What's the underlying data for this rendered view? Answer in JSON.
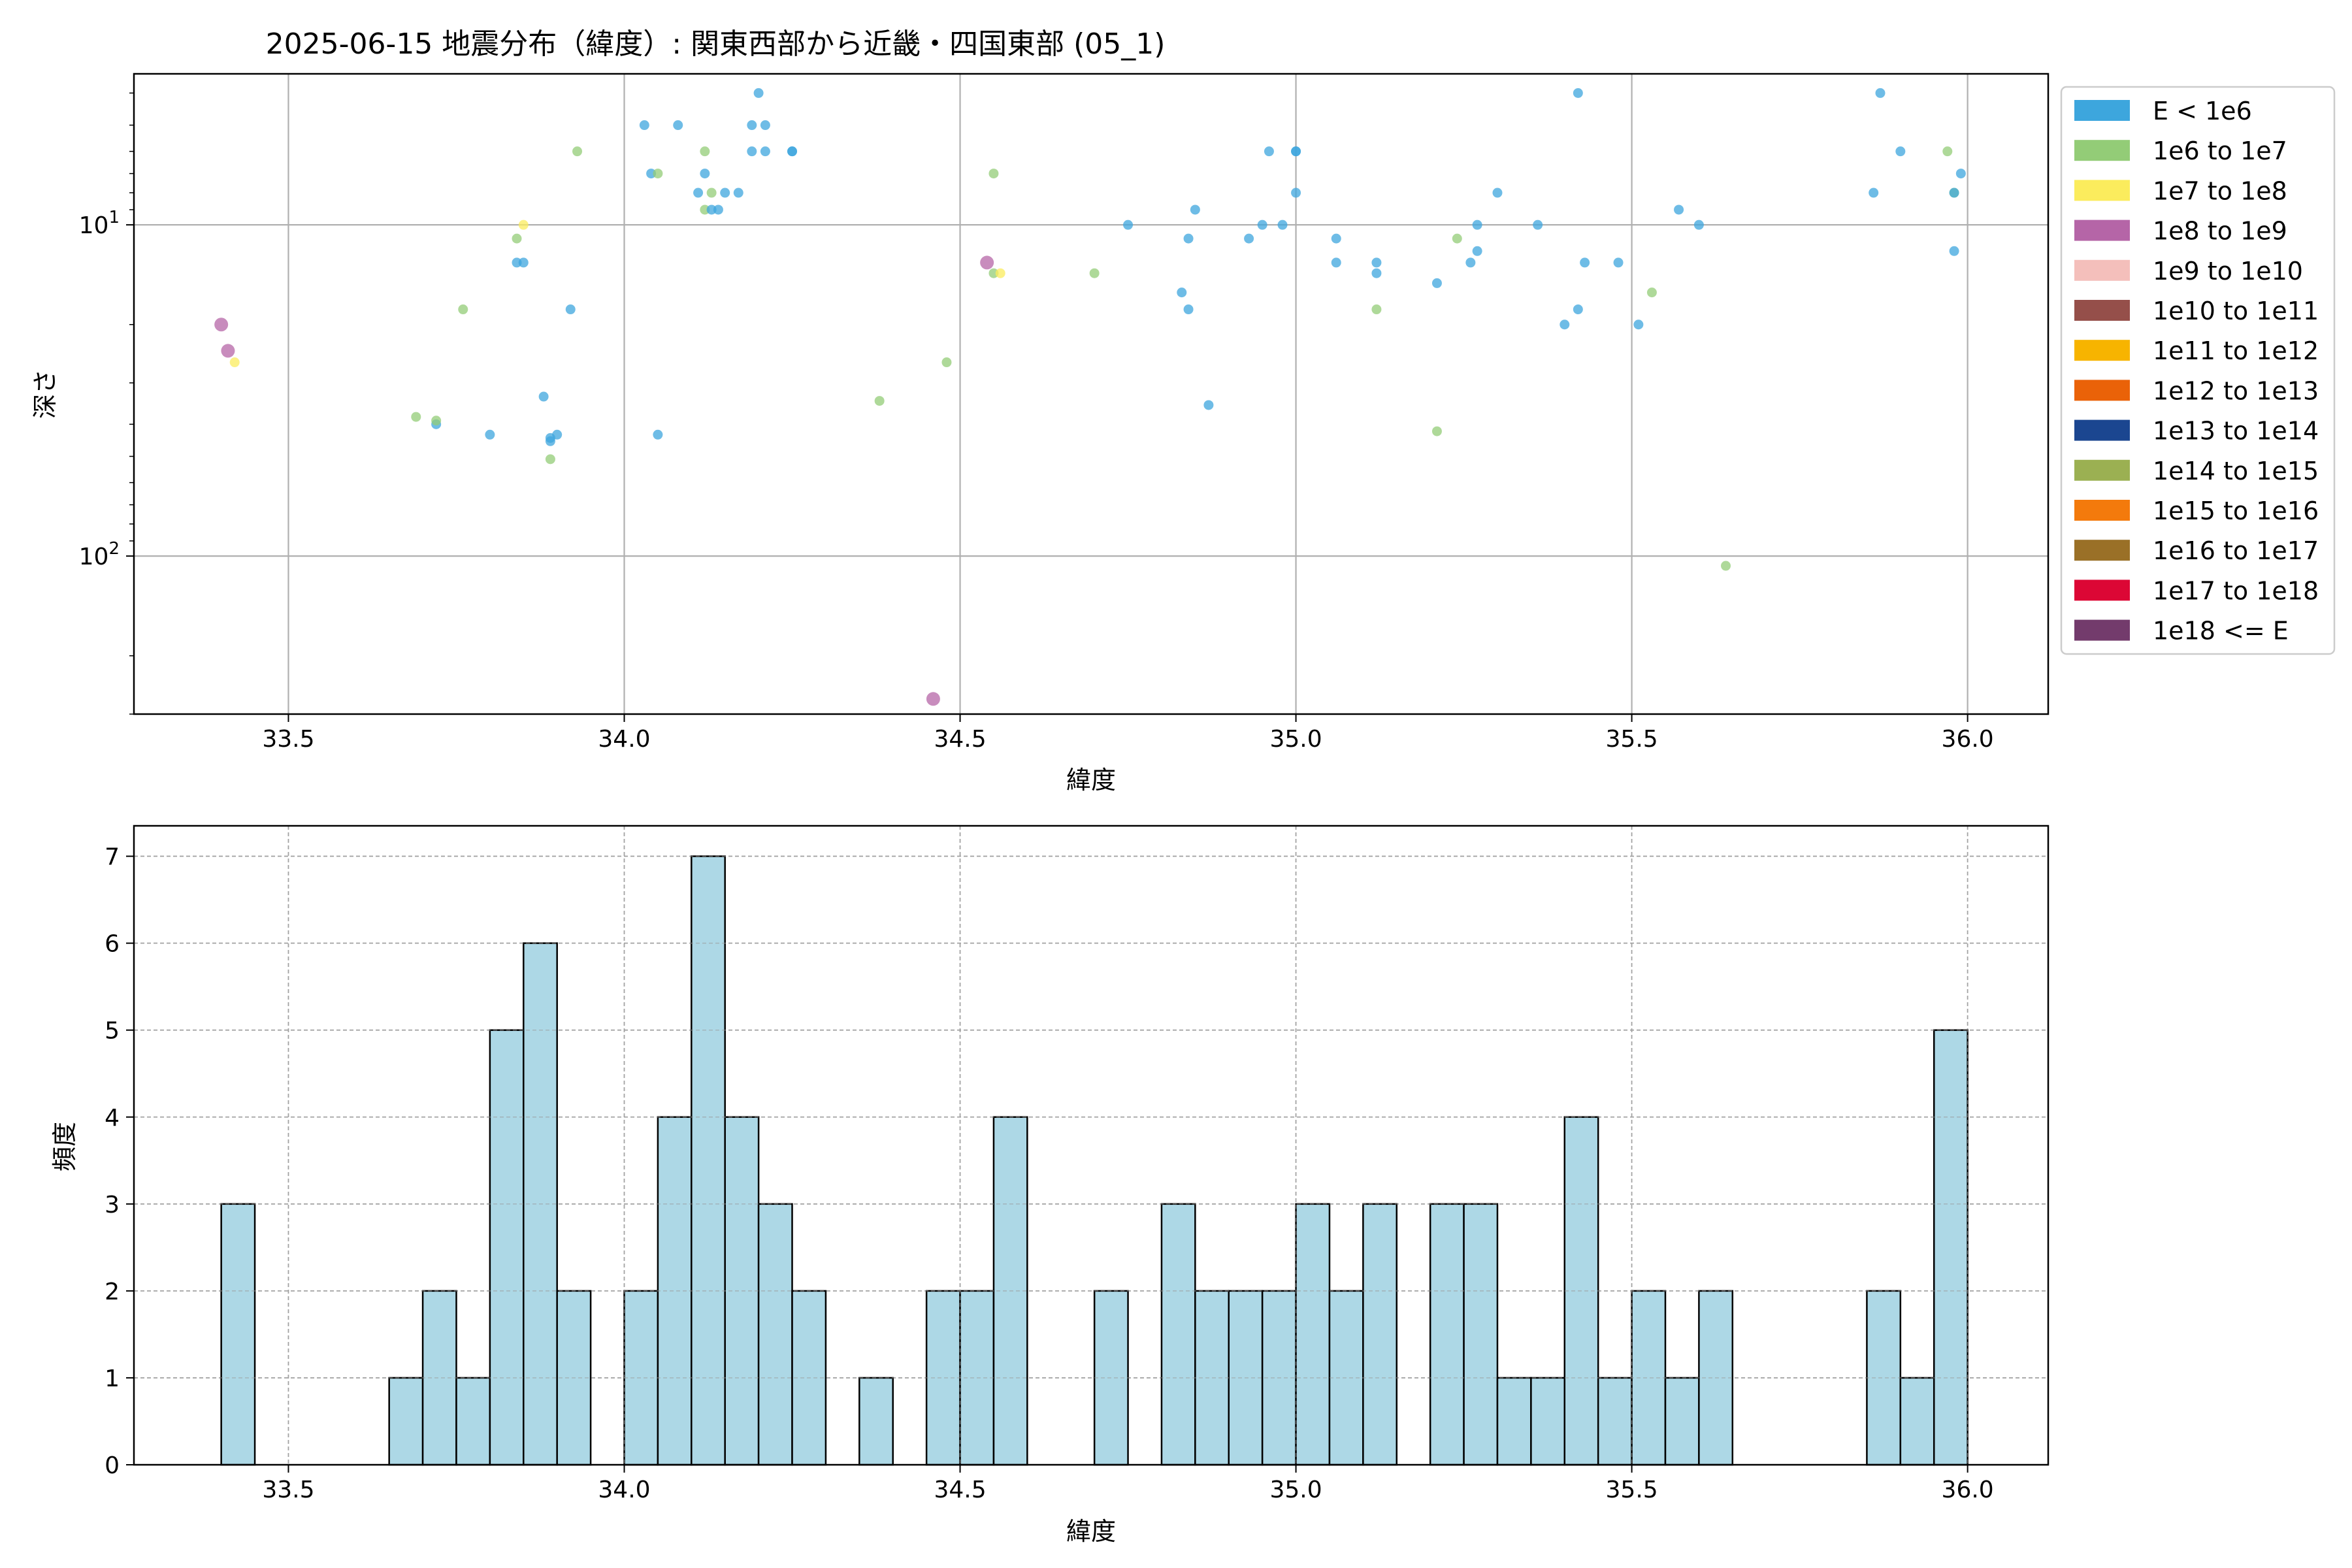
{
  "chart_data": [
    {
      "type": "scatter",
      "title": "2025-06-15 地震分布（緯度）: 関東西部から近畿・四国東部 (05_1)",
      "xlabel": "緯度",
      "ylabel": "深さ",
      "xlim": [
        33.27,
        36.12
      ],
      "ylim": [
        300,
        3.5
      ],
      "yscale": "log",
      "y_inverted": true,
      "grid": true,
      "legend_position": "outside-right",
      "x_ticks": [
        "33.5",
        "34.0",
        "34.5",
        "35.0",
        "35.5",
        "36.0"
      ],
      "y_tick_labels": [
        {
          "value": 10,
          "base": "10",
          "exp": "1"
        },
        {
          "value": 100,
          "base": "10",
          "exp": "2"
        }
      ],
      "legend": [
        {
          "label": "E < 1e6",
          "color": "#3da6dd"
        },
        {
          "label": "1e6 to 1e7",
          "color": "#93cc77"
        },
        {
          "label": "1e7 to 1e8",
          "color": "#fbec5d"
        },
        {
          "label": "1e8 to 1e9",
          "color": "#b565a7"
        },
        {
          "label": "1e9 to 1e10",
          "color": "#f4bfbb"
        },
        {
          "label": "1e10 to 1e11",
          "color": "#954f4a"
        },
        {
          "label": "1e11 to 1e12",
          "color": "#f7b400"
        },
        {
          "label": "1e12 to 1e13",
          "color": "#ea6208"
        },
        {
          "label": "1e13 to 1e14",
          "color": "#1b4690"
        },
        {
          "label": "1e14 to 1e15",
          "color": "#9bb052"
        },
        {
          "label": "1e15 to 1e16",
          "color": "#f37a0c"
        },
        {
          "label": "1e16 to 1e17",
          "color": "#9a7027"
        },
        {
          "label": "1e17 to 1e18",
          "color": "#dc0735"
        },
        {
          "label": "1e18 <= E",
          "color": "#733b6c"
        }
      ],
      "points": [
        {
          "x": 33.4,
          "y": 20,
          "c": 3
        },
        {
          "x": 33.41,
          "y": 24,
          "c": 3
        },
        {
          "x": 33.42,
          "y": 26,
          "c": 2
        },
        {
          "x": 33.69,
          "y": 38,
          "c": 1
        },
        {
          "x": 33.72,
          "y": 40,
          "c": 0
        },
        {
          "x": 33.72,
          "y": 39,
          "c": 1
        },
        {
          "x": 33.76,
          "y": 18,
          "c": 1
        },
        {
          "x": 33.8,
          "y": 43,
          "c": 0
        },
        {
          "x": 33.84,
          "y": 13,
          "c": 0
        },
        {
          "x": 33.84,
          "y": 11,
          "c": 1
        },
        {
          "x": 33.85,
          "y": 13,
          "c": 0
        },
        {
          "x": 33.85,
          "y": 10,
          "c": 2
        },
        {
          "x": 33.88,
          "y": 33,
          "c": 0
        },
        {
          "x": 33.89,
          "y": 44,
          "c": 0
        },
        {
          "x": 33.89,
          "y": 51,
          "c": 1
        },
        {
          "x": 33.89,
          "y": 45,
          "c": 0
        },
        {
          "x": 33.9,
          "y": 43,
          "c": 0
        },
        {
          "x": 33.92,
          "y": 18,
          "c": 0
        },
        {
          "x": 33.93,
          "y": 6,
          "c": 1
        },
        {
          "x": 34.03,
          "y": 5,
          "c": 0
        },
        {
          "x": 34.04,
          "y": 7,
          "c": 0
        },
        {
          "x": 34.05,
          "y": 7,
          "c": 1
        },
        {
          "x": 34.05,
          "y": 43,
          "c": 0
        },
        {
          "x": 34.08,
          "y": 5,
          "c": 0
        },
        {
          "x": 34.11,
          "y": 8,
          "c": 0
        },
        {
          "x": 34.12,
          "y": 6,
          "c": 1
        },
        {
          "x": 34.12,
          "y": 7,
          "c": 0
        },
        {
          "x": 34.12,
          "y": 9,
          "c": 1
        },
        {
          "x": 34.13,
          "y": 9,
          "c": 0
        },
        {
          "x": 34.13,
          "y": 8,
          "c": 1
        },
        {
          "x": 34.14,
          "y": 9,
          "c": 0
        },
        {
          "x": 34.15,
          "y": 8,
          "c": 0
        },
        {
          "x": 34.17,
          "y": 8,
          "c": 0
        },
        {
          "x": 34.19,
          "y": 6,
          "c": 0
        },
        {
          "x": 34.19,
          "y": 5,
          "c": 0
        },
        {
          "x": 34.2,
          "y": 4,
          "c": 0
        },
        {
          "x": 34.21,
          "y": 6,
          "c": 0
        },
        {
          "x": 34.21,
          "y": 5,
          "c": 0
        },
        {
          "x": 34.25,
          "y": 6,
          "c": 0
        },
        {
          "x": 34.25,
          "y": 6,
          "c": 0
        },
        {
          "x": 34.38,
          "y": 34,
          "c": 1
        },
        {
          "x": 34.46,
          "y": 270,
          "c": 3
        },
        {
          "x": 34.48,
          "y": 26,
          "c": 1
        },
        {
          "x": 34.54,
          "y": 13,
          "c": 3
        },
        {
          "x": 34.55,
          "y": 7,
          "c": 1
        },
        {
          "x": 34.55,
          "y": 14,
          "c": 1
        },
        {
          "x": 34.56,
          "y": 14,
          "c": 2
        },
        {
          "x": 34.7,
          "y": 14,
          "c": 1
        },
        {
          "x": 34.75,
          "y": 10,
          "c": 0
        },
        {
          "x": 34.83,
          "y": 16,
          "c": 0
        },
        {
          "x": 34.84,
          "y": 11,
          "c": 0
        },
        {
          "x": 34.84,
          "y": 18,
          "c": 0
        },
        {
          "x": 34.85,
          "y": 9,
          "c": 0
        },
        {
          "x": 34.87,
          "y": 35,
          "c": 0
        },
        {
          "x": 34.93,
          "y": 11,
          "c": 0
        },
        {
          "x": 34.95,
          "y": 10,
          "c": 0
        },
        {
          "x": 34.96,
          "y": 6,
          "c": 0
        },
        {
          "x": 34.98,
          "y": 10,
          "c": 0
        },
        {
          "x": 35.0,
          "y": 6,
          "c": 0
        },
        {
          "x": 35.0,
          "y": 6,
          "c": 0
        },
        {
          "x": 35.0,
          "y": 8,
          "c": 0
        },
        {
          "x": 35.06,
          "y": 11,
          "c": 0
        },
        {
          "x": 35.06,
          "y": 13,
          "c": 0
        },
        {
          "x": 35.12,
          "y": 13,
          "c": 0
        },
        {
          "x": 35.12,
          "y": 14,
          "c": 0
        },
        {
          "x": 35.12,
          "y": 18,
          "c": 1
        },
        {
          "x": 35.21,
          "y": 15,
          "c": 0
        },
        {
          "x": 35.21,
          "y": 42,
          "c": 1
        },
        {
          "x": 35.24,
          "y": 11,
          "c": 1
        },
        {
          "x": 35.26,
          "y": 13,
          "c": 0
        },
        {
          "x": 35.27,
          "y": 10,
          "c": 0
        },
        {
          "x": 35.27,
          "y": 12,
          "c": 0
        },
        {
          "x": 35.3,
          "y": 8,
          "c": 0
        },
        {
          "x": 35.36,
          "y": 10,
          "c": 0
        },
        {
          "x": 35.4,
          "y": 20,
          "c": 0
        },
        {
          "x": 35.42,
          "y": 4,
          "c": 0
        },
        {
          "x": 35.42,
          "y": 18,
          "c": 0
        },
        {
          "x": 35.43,
          "y": 13,
          "c": 0
        },
        {
          "x": 35.48,
          "y": 13,
          "c": 0
        },
        {
          "x": 35.51,
          "y": 20,
          "c": 0
        },
        {
          "x": 35.53,
          "y": 16,
          "c": 1
        },
        {
          "x": 35.57,
          "y": 9,
          "c": 0
        },
        {
          "x": 35.6,
          "y": 10,
          "c": 0
        },
        {
          "x": 35.64,
          "y": 107,
          "c": 1
        },
        {
          "x": 35.86,
          "y": 8,
          "c": 0
        },
        {
          "x": 35.87,
          "y": 4,
          "c": 0
        },
        {
          "x": 35.9,
          "y": 6,
          "c": 0
        },
        {
          "x": 35.97,
          "y": 6,
          "c": 1
        },
        {
          "x": 35.98,
          "y": 8,
          "c": 1
        },
        {
          "x": 35.98,
          "y": 8,
          "c": 0
        },
        {
          "x": 35.98,
          "y": 12,
          "c": 0
        },
        {
          "x": 35.99,
          "y": 7,
          "c": 0
        }
      ]
    },
    {
      "type": "bar",
      "title": "",
      "xlabel": "緯度",
      "ylabel": "頻度",
      "xlim": [
        33.27,
        36.12
      ],
      "ylim": [
        0,
        7.35
      ],
      "grid": true,
      "bar_color": "#add8e6",
      "x_ticks": [
        "33.5",
        "34.0",
        "34.5",
        "35.0",
        "35.5",
        "36.0"
      ],
      "y_ticks": [
        "0",
        "1",
        "2",
        "3",
        "4",
        "5",
        "6",
        "7"
      ],
      "bin_start": 33.4,
      "bin_width": 0.05,
      "values": [
        3,
        0,
        0,
        0,
        0,
        1,
        2,
        1,
        5,
        6,
        2,
        0,
        2,
        4,
        7,
        4,
        3,
        2,
        0,
        1,
        0,
        2,
        2,
        4,
        0,
        0,
        2,
        0,
        3,
        2,
        2,
        2,
        3,
        2,
        3,
        0,
        3,
        3,
        1,
        1,
        4,
        1,
        2,
        1,
        2,
        0,
        0,
        0,
        0,
        2,
        1,
        5
      ]
    }
  ]
}
